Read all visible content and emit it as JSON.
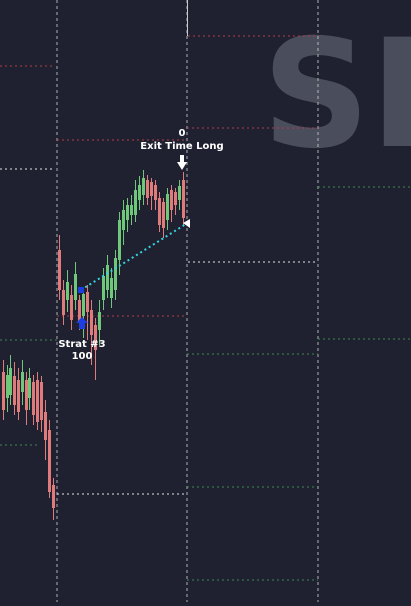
{
  "theme": {
    "background": "#1f2130",
    "watermark_color": "#4a4d5c",
    "bull_color": "#6fc77a",
    "bear_color": "#e07b7b",
    "entry_color": "#1e3fe0",
    "trade_line_color": "#33d6e0",
    "level_white": "#e6e6e6",
    "level_red": "#b23b45",
    "level_green": "#3e8c4e",
    "grid_color": "#c9c9c9"
  },
  "watermark": {
    "text": "SP"
  },
  "exit_marker": {
    "quantity": "0",
    "label": "Exit Time Long"
  },
  "entry_marker": {
    "label": "Strat #3",
    "quantity": "100"
  }
}
